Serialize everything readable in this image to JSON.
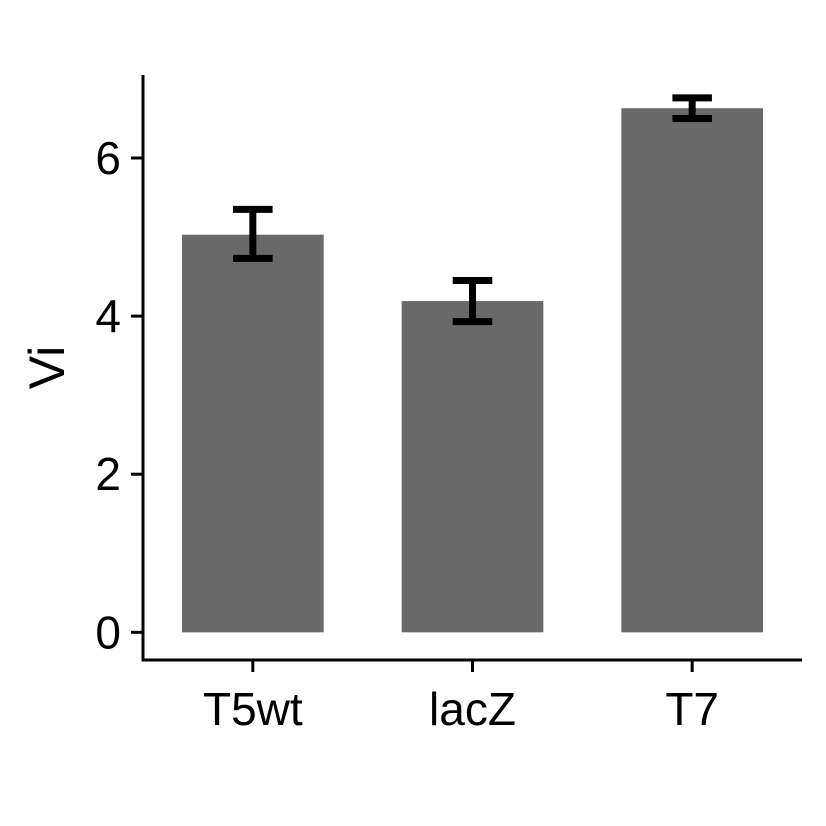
{
  "chart_data": {
    "type": "bar",
    "title": "",
    "xlabel": "",
    "ylabel": "Vi",
    "categories": [
      "T5wt",
      "lacZ",
      "T7"
    ],
    "values": [
      5.03,
      4.19,
      6.63
    ],
    "error_low": [
      4.73,
      3.93,
      6.5
    ],
    "error_high": [
      5.35,
      4.45,
      6.76
    ],
    "ylim": [
      -0.35,
      7.05
    ],
    "yticks": [
      "0",
      "2",
      "4",
      "6"
    ],
    "grid": false,
    "legend": "none",
    "bar_color": "#696969",
    "error_color": "#000000"
  }
}
